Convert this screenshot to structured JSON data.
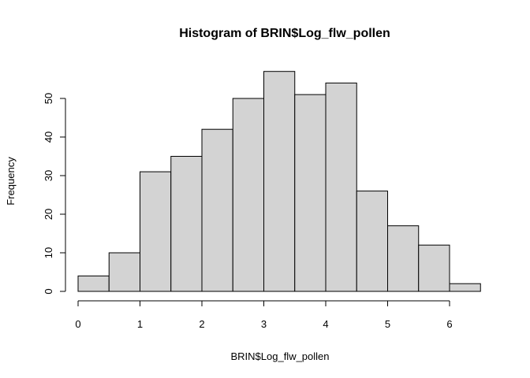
{
  "chart_data": {
    "type": "bar",
    "title": "Histogram of BRIN$Log_flw_pollen",
    "xlabel": "BRIN$Log_flw_pollen",
    "ylabel": "Frequency",
    "bin_width": 0.5,
    "bins": [
      {
        "start": 0.0,
        "end": 0.5,
        "count": 4
      },
      {
        "start": 0.5,
        "end": 1.0,
        "count": 10
      },
      {
        "start": 1.0,
        "end": 1.5,
        "count": 31
      },
      {
        "start": 1.5,
        "end": 2.0,
        "count": 35
      },
      {
        "start": 2.0,
        "end": 2.5,
        "count": 42
      },
      {
        "start": 2.5,
        "end": 3.0,
        "count": 50
      },
      {
        "start": 3.0,
        "end": 3.5,
        "count": 57
      },
      {
        "start": 3.5,
        "end": 4.0,
        "count": 51
      },
      {
        "start": 4.0,
        "end": 4.5,
        "count": 54
      },
      {
        "start": 4.5,
        "end": 5.0,
        "count": 26
      },
      {
        "start": 5.0,
        "end": 5.5,
        "count": 17
      },
      {
        "start": 5.5,
        "end": 6.0,
        "count": 12
      },
      {
        "start": 6.0,
        "end": 6.5,
        "count": 2
      }
    ],
    "x_ticks": [
      0,
      1,
      2,
      3,
      4,
      5,
      6
    ],
    "y_ticks": [
      0,
      10,
      20,
      30,
      40,
      50
    ],
    "xlim": [
      0,
      6.5
    ],
    "ylim": [
      0,
      57
    ],
    "grid": false,
    "colors": {
      "bar_fill": "#d3d3d3",
      "bar_stroke": "#000000"
    }
  }
}
